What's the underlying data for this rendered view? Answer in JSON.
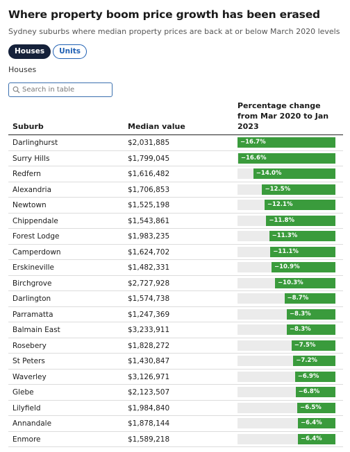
{
  "header": {
    "title": "Where property boom price growth has been erased",
    "subtitle": "Sydney suburbs where median property prices are back at or below March 2020 levels"
  },
  "tabs": [
    {
      "label": "Houses",
      "active": true
    },
    {
      "label": "Units",
      "active": false
    }
  ],
  "selected_label": "Houses",
  "search": {
    "placeholder": "Search in table",
    "value": ""
  },
  "table": {
    "columns": [
      "Suburb",
      "Median value",
      "Percentage change from Mar 2020 to Jan 2023"
    ],
    "rows": [
      {
        "suburb": "Darlinghurst",
        "median": "$2,031,885",
        "change": -16.7,
        "change_label": "−16.7%"
      },
      {
        "suburb": "Surry Hills",
        "median": "$1,799,045",
        "change": -16.6,
        "change_label": "−16.6%"
      },
      {
        "suburb": "Redfern",
        "median": "$1,616,482",
        "change": -14.0,
        "change_label": "−14.0%"
      },
      {
        "suburb": "Alexandria",
        "median": "$1,706,853",
        "change": -12.5,
        "change_label": "−12.5%"
      },
      {
        "suburb": "Newtown",
        "median": "$1,525,198",
        "change": -12.1,
        "change_label": "−12.1%"
      },
      {
        "suburb": "Chippendale",
        "median": "$1,543,861",
        "change": -11.8,
        "change_label": "−11.8%"
      },
      {
        "suburb": "Forest Lodge",
        "median": "$1,983,235",
        "change": -11.3,
        "change_label": "−11.3%"
      },
      {
        "suburb": "Camperdown",
        "median": "$1,624,702",
        "change": -11.1,
        "change_label": "−11.1%"
      },
      {
        "suburb": "Erskineville",
        "median": "$1,482,331",
        "change": -10.9,
        "change_label": "−10.9%"
      },
      {
        "suburb": "Birchgrove",
        "median": "$2,727,928",
        "change": -10.3,
        "change_label": "−10.3%"
      },
      {
        "suburb": "Darlington",
        "median": "$1,574,738",
        "change": -8.7,
        "change_label": "−8.7%"
      },
      {
        "suburb": "Parramatta",
        "median": "$1,247,369",
        "change": -8.3,
        "change_label": "−8.3%"
      },
      {
        "suburb": "Balmain East",
        "median": "$3,233,911",
        "change": -8.3,
        "change_label": "−8.3%"
      },
      {
        "suburb": "Rosebery",
        "median": "$1,828,272",
        "change": -7.5,
        "change_label": "−7.5%"
      },
      {
        "suburb": "St Peters",
        "median": "$1,430,847",
        "change": -7.2,
        "change_label": "−7.2%"
      },
      {
        "suburb": "Waverley",
        "median": "$3,126,971",
        "change": -6.9,
        "change_label": "−6.9%"
      },
      {
        "suburb": "Glebe",
        "median": "$2,123,507",
        "change": -6.8,
        "change_label": "−6.8%"
      },
      {
        "suburb": "Lilyfield",
        "median": "$1,984,840",
        "change": -6.5,
        "change_label": "−6.5%"
      },
      {
        "suburb": "Annandale",
        "median": "$1,878,144",
        "change": -6.4,
        "change_label": "−6.4%"
      },
      {
        "suburb": "Enmore",
        "median": "$1,589,218",
        "change": -6.4,
        "change_label": "−6.4%"
      }
    ],
    "bar_scale_max": 16.7
  },
  "colors": {
    "bar": "#3a9b3c",
    "track": "#ebebeb",
    "active_tab": "#15213a",
    "inactive_tab_border": "#1e5fb3"
  },
  "icons": {
    "search": "search-icon"
  }
}
